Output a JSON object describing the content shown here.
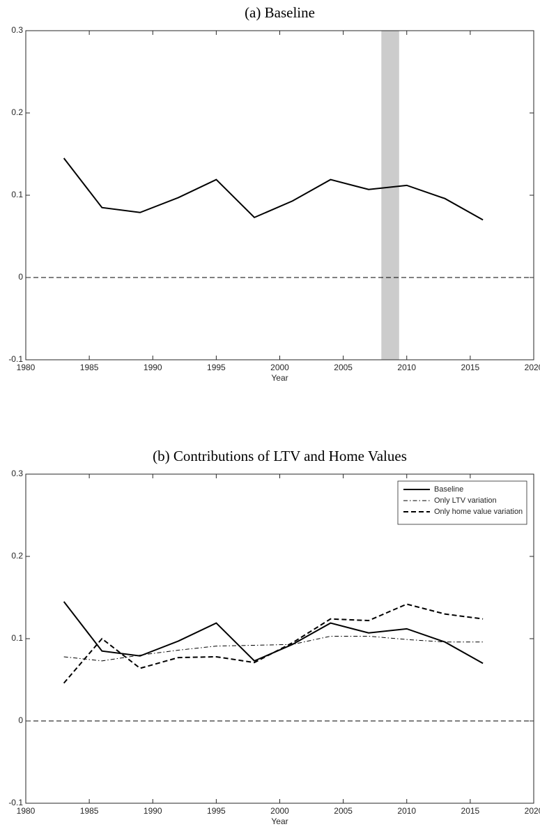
{
  "chart_data": [
    {
      "type": "line",
      "title": "(a) Baseline",
      "x_label": "Year",
      "x": [
        1983,
        1986,
        1989,
        1992,
        1995,
        1998,
        2001,
        2004,
        2007,
        2010,
        2013,
        2016
      ],
      "series": [
        {
          "name": "Baseline",
          "color": "#000000",
          "line_style": "solid",
          "values": [
            0.145,
            0.085,
            0.079,
            0.097,
            0.119,
            0.073,
            0.093,
            0.119,
            0.107,
            0.112,
            0.096,
            0.07
          ]
        }
      ],
      "shaded_region": {
        "x": [
          2008,
          2009.4
        ],
        "color": "#cccccc"
      },
      "xlim": [
        1980,
        2020
      ],
      "xticks": [
        1980,
        1985,
        1990,
        1995,
        2000,
        2005,
        2010,
        2015,
        2020
      ],
      "ylim": [
        -0.1,
        0.3
      ],
      "yticks": [
        -0.1,
        0,
        0.1,
        0.2,
        0.3
      ],
      "legend": false
    },
    {
      "type": "line",
      "title": "(b) Contributions of LTV and Home Values",
      "x_label": "Year",
      "x": [
        1983,
        1986,
        1989,
        1992,
        1995,
        1998,
        2001,
        2004,
        2007,
        2010,
        2013,
        2016
      ],
      "series": [
        {
          "name": "Baseline",
          "color": "#000000",
          "line_style": "solid",
          "values": [
            0.145,
            0.085,
            0.079,
            0.097,
            0.119,
            0.073,
            0.093,
            0.119,
            0.107,
            0.112,
            0.096,
            0.07
          ]
        },
        {
          "name": "Only LTV variation",
          "color": "#000000",
          "line_style": "dashdot",
          "values": [
            0.078,
            0.073,
            0.08,
            0.086,
            0.091,
            0.092,
            0.093,
            0.103,
            0.103,
            0.099,
            0.096,
            0.096
          ]
        },
        {
          "name": "Only home value variation",
          "color": "#000000",
          "line_style": "dashed",
          "values": [
            0.046,
            0.1,
            0.064,
            0.077,
            0.078,
            0.071,
            0.095,
            0.124,
            0.122,
            0.142,
            0.13,
            0.124
          ]
        }
      ],
      "xlim": [
        1980,
        2020
      ],
      "xticks": [
        1980,
        1985,
        1990,
        1995,
        2000,
        2005,
        2010,
        2015,
        2020
      ],
      "ylim": [
        -0.1,
        0.3
      ],
      "yticks": [
        -0.1,
        0,
        0.1,
        0.2,
        0.3
      ],
      "legend": "upper right"
    }
  ]
}
